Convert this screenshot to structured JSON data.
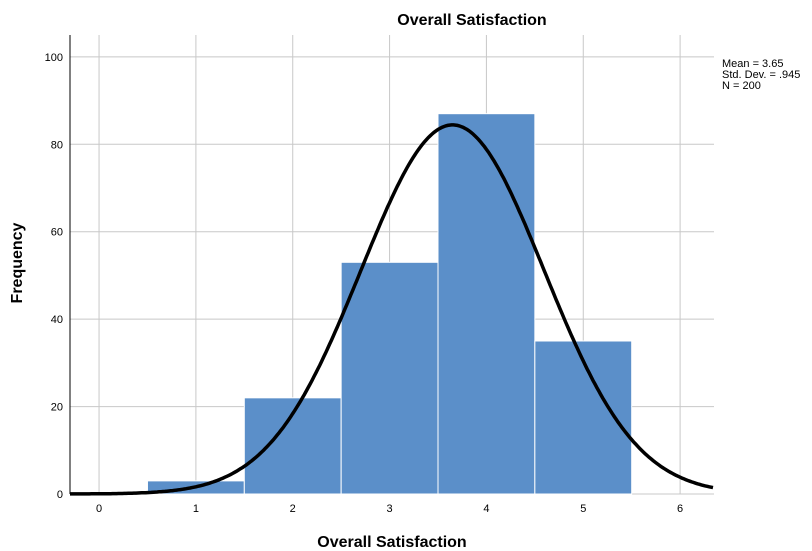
{
  "chart_data": {
    "type": "bar",
    "title": "Overall Satisfaction",
    "xlabel": "Overall Satisfaction",
    "ylabel": "Frequency",
    "categories": [
      1,
      2,
      3,
      4,
      5
    ],
    "values": [
      3,
      22,
      53,
      87,
      35
    ],
    "xlim": [
      -0.3,
      6.35
    ],
    "ylim": [
      0,
      105
    ],
    "x_ticks": [
      0,
      1,
      2,
      3,
      4,
      5,
      6
    ],
    "y_ticks": [
      0,
      20,
      40,
      60,
      80,
      100
    ],
    "grid": true,
    "normal_curve": {
      "mean": 3.65,
      "sd": 0.945,
      "n": 200
    },
    "stats_text": [
      "Mean = 3.65",
      "Std. Dev. = .945",
      "N = 200"
    ],
    "stats_position": "top-right",
    "colors": {
      "bar": "#5b8fc9",
      "curve": "#000000",
      "grid": "#c8c8c8"
    }
  }
}
